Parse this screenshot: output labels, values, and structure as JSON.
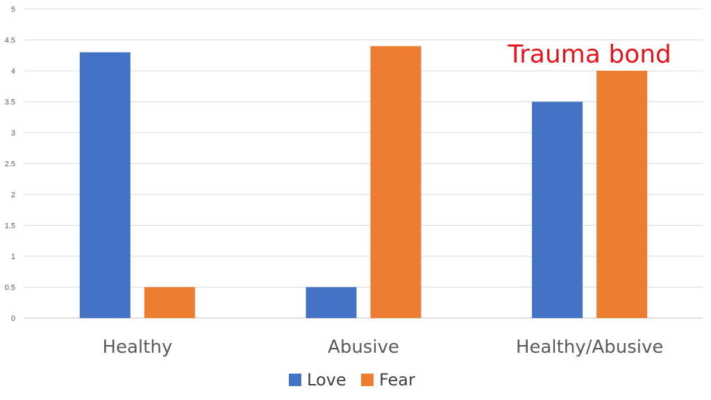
{
  "chart_data": {
    "type": "bar",
    "categories": [
      "Healthy",
      "Abusive",
      "Healthy/Abusive"
    ],
    "series": [
      {
        "name": "Love",
        "color": "#4472c4",
        "values": [
          4.3,
          0.5,
          3.5
        ]
      },
      {
        "name": "Fear",
        "color": "#ed7d31",
        "values": [
          0.5,
          4.4,
          4.0
        ]
      }
    ],
    "ylim": [
      0,
      5
    ],
    "yticks": [
      "0",
      "0.5",
      "1",
      "1.5",
      "2",
      "2.5",
      "3",
      "3.5",
      "4",
      "4.5",
      "5"
    ],
    "grid": true,
    "legend_position": "bottom",
    "annotation": {
      "text": "Trauma bond",
      "color": "#e8131a",
      "category": "Healthy/Abusive"
    }
  }
}
